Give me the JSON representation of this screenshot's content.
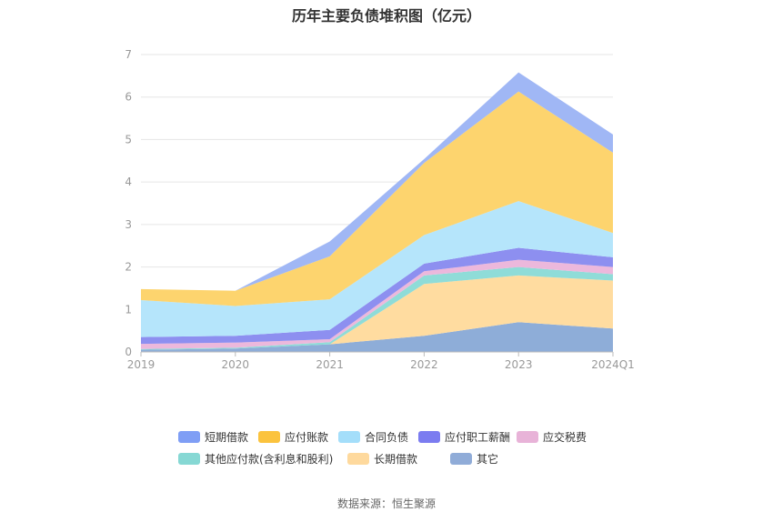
{
  "chart_data": {
    "type": "area",
    "stacked": true,
    "title": "历年主要负债堆积图（亿元）",
    "categories": [
      "2019",
      "2020",
      "2021",
      "2022",
      "2023",
      "2024Q1"
    ],
    "ylim": [
      0,
      7
    ],
    "yticks": [
      0,
      1,
      2,
      3,
      4,
      5,
      6,
      7
    ],
    "grid": true,
    "legend_position": "bottom",
    "series": [
      {
        "name": "其它",
        "color": "#8eadd8",
        "values": [
          0.05,
          0.08,
          0.18,
          0.38,
          0.7,
          0.55
        ]
      },
      {
        "name": "长期借款",
        "color": "#ffdca0",
        "values": [
          0.0,
          0.0,
          0.0,
          1.22,
          1.1,
          1.13
        ]
      },
      {
        "name": "其他应付款(含利息和股利)",
        "color": "#8fdcd8",
        "values": [
          0.02,
          0.02,
          0.05,
          0.2,
          0.2,
          0.15
        ]
      },
      {
        "name": "应交税费",
        "color": "#ecb8dc",
        "values": [
          0.12,
          0.12,
          0.07,
          0.1,
          0.17,
          0.17
        ]
      },
      {
        "name": "应付职工薪酬",
        "color": "#8d8ff0",
        "values": [
          0.16,
          0.16,
          0.22,
          0.18,
          0.28,
          0.23
        ]
      },
      {
        "name": "合同负债",
        "color": "#b5e5fb",
        "values": [
          0.87,
          0.7,
          0.72,
          0.67,
          1.1,
          0.57
        ]
      },
      {
        "name": "应付账款",
        "color": "#fdd46e",
        "values": [
          0.26,
          0.36,
          1.01,
          1.7,
          2.58,
          1.89
        ]
      },
      {
        "name": "短期借款",
        "color": "#a0b7f5",
        "values": [
          0.0,
          0.0,
          0.35,
          0.09,
          0.45,
          0.43
        ]
      }
    ],
    "legend_order": [
      "短期借款",
      "应付账款",
      "合同负债",
      "应付职工薪酬",
      "应交税费",
      "其他应付款(含利息和股利)",
      "长期借款",
      "其它"
    ],
    "legend_colors": {
      "短期借款": "#7f9ef5",
      "应付账款": "#fbc33e",
      "合同负债": "#a4defa",
      "应付职工薪酬": "#7b7cf0",
      "应交税费": "#e8b3d8",
      "其他应付款(含利息和股利)": "#86d8d4",
      "长期借款": "#fed99d",
      "其它": "#90acd8"
    }
  },
  "source_text": "数据来源：恒生聚源"
}
